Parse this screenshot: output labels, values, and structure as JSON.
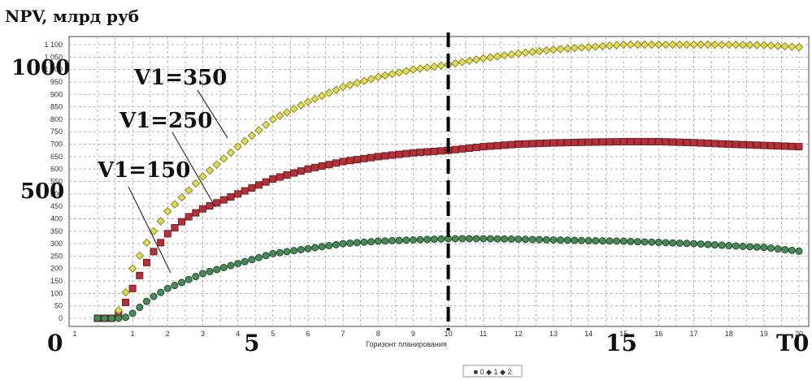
{
  "chart_data": {
    "type": "scatter",
    "ylabel": "NPV, млрд руб",
    "xlabel": "Горизонт планирования",
    "x_ticks": [
      "1",
      "1",
      "2",
      "3",
      "4",
      "5",
      "6",
      "7",
      "8",
      "9",
      "10",
      "11",
      "12",
      "13",
      "14",
      "15",
      "16",
      "17",
      "18",
      "19",
      "20"
    ],
    "y_ticks": [
      "0",
      "50",
      "100",
      "150",
      "200",
      "250",
      "300",
      "350",
      "400",
      "450",
      "500",
      "550",
      "600",
      "650",
      "700",
      "750",
      "800",
      "850",
      "900",
      "950",
      "1 000",
      "1 050",
      "1 100"
    ],
    "big_y_labels": [
      "1000",
      "500"
    ],
    "big_x_labels": [
      "0",
      "5",
      "15",
      "T0"
    ],
    "xlim": [
      0,
      20
    ],
    "ylim": [
      0,
      1100
    ],
    "grid": true,
    "marker_line_x": 10,
    "legend_text": "■ 0 ◆ 1 ◆ 2",
    "annotations": [
      "V1=350",
      "V1=250",
      "V1=150"
    ],
    "series": [
      {
        "name": "0",
        "color": "#b2323a",
        "edge": "#7a1a20",
        "marker": "square",
        "x": [
          0,
          0.5,
          0.75,
          1,
          1.5,
          2,
          2.5,
          3,
          3.5,
          4,
          5,
          6,
          7,
          8,
          9,
          10,
          11,
          12,
          13,
          14,
          15,
          16,
          17,
          18,
          19,
          20
        ],
        "y": [
          0,
          0,
          50,
          120,
          250,
          340,
          400,
          440,
          470,
          500,
          560,
          600,
          630,
          650,
          665,
          675,
          690,
          700,
          705,
          708,
          710,
          710,
          706,
          700,
          695,
          690
        ]
      },
      {
        "name": "1",
        "color": "#e3d95a",
        "edge": "#8a8a20",
        "marker": "diamond",
        "x": [
          0,
          0.5,
          0.75,
          1,
          1.5,
          2,
          2.5,
          3,
          3.5,
          4,
          5,
          6,
          7,
          8,
          9,
          10,
          11,
          12,
          13,
          14,
          15,
          16,
          17,
          18,
          19,
          20
        ],
        "y": [
          0,
          0,
          80,
          200,
          330,
          430,
          500,
          570,
          630,
          690,
          800,
          870,
          930,
          970,
          1000,
          1020,
          1045,
          1065,
          1080,
          1090,
          1100,
          1100,
          1100,
          1100,
          1098,
          1090
        ]
      },
      {
        "name": "2",
        "color": "#4a8a5a",
        "edge": "#244a2c",
        "marker": "circle",
        "x": [
          0,
          0.5,
          0.75,
          1,
          1.5,
          2,
          2.5,
          3,
          3.5,
          4,
          5,
          6,
          7,
          8,
          9,
          10,
          11,
          12,
          13,
          14,
          15,
          16,
          17,
          18,
          19,
          20
        ],
        "y": [
          0,
          0,
          0,
          20,
          80,
          120,
          150,
          180,
          200,
          220,
          260,
          280,
          300,
          310,
          315,
          320,
          320,
          318,
          315,
          312,
          310,
          305,
          300,
          292,
          285,
          270
        ]
      }
    ]
  }
}
